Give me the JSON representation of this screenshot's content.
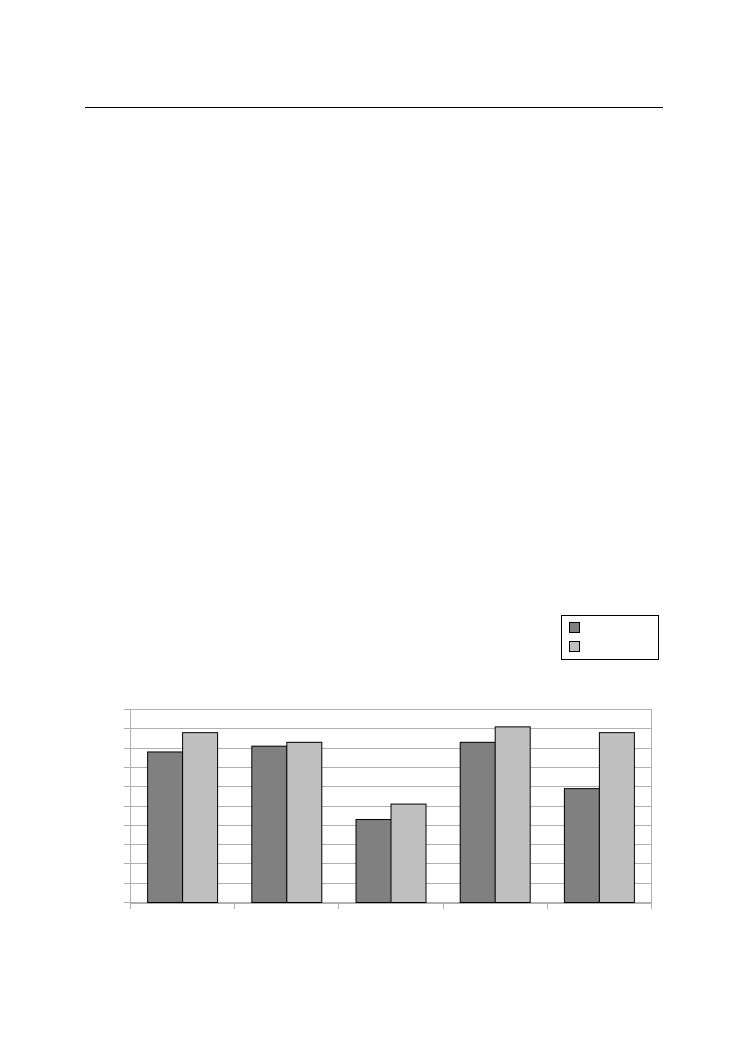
{
  "chart_data": {
    "type": "bar",
    "title": "",
    "xlabel": "",
    "ylabel": "",
    "categories": [
      "",
      "",
      "",
      "",
      ""
    ],
    "series": [
      {
        "values": [
          7.8,
          8.1,
          4.3,
          8.3,
          5.9
        ],
        "color": "#808080"
      },
      {
        "values": [
          8.8,
          8.3,
          5.1,
          9.1,
          8.8
        ],
        "color": "#c0c0c0"
      }
    ],
    "ylim": [
      0,
      10
    ],
    "grid": true,
    "legend": "top-right",
    "gridline_color": "#b0b0b0"
  }
}
